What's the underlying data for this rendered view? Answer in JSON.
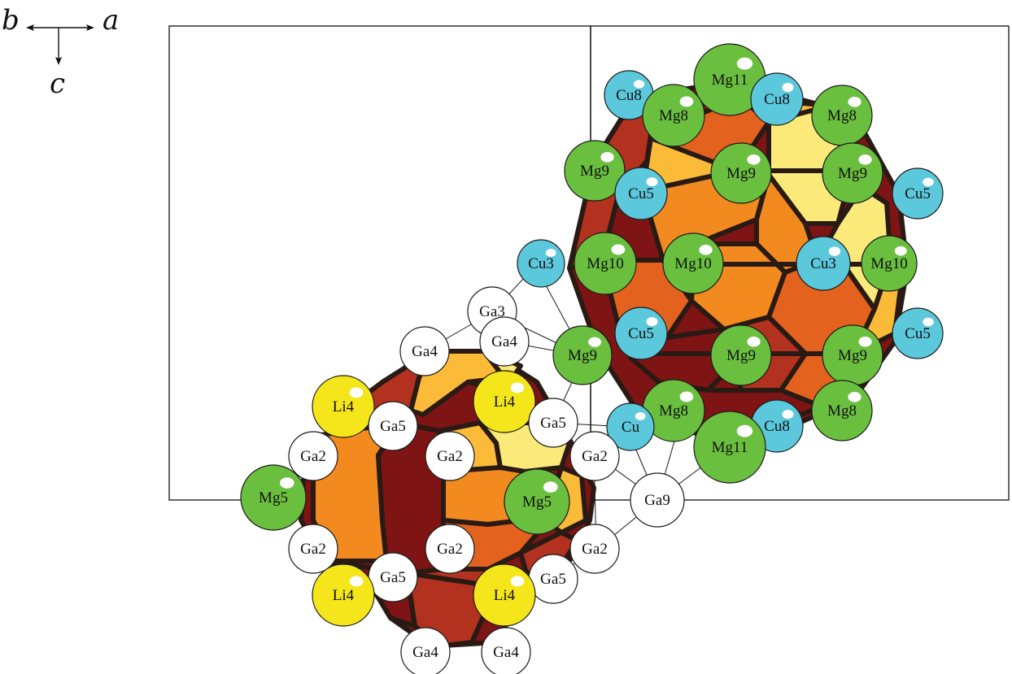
{
  "axes": {
    "a": "a",
    "b": "b",
    "c": "c"
  },
  "colors": {
    "mg": "#6abf3f",
    "cu": "#5cc8dc",
    "li": "#f4e61a",
    "ga": "#ffffff",
    "face_dark": "#7e1414",
    "face_red": "#b3311f",
    "face_orange_dark": "#e2621e",
    "face_orange": "#f28a1f",
    "face_amber": "#fbbb38",
    "face_yellow": "#fbe97a",
    "edge": "#2a1a14"
  },
  "atoms": [
    {
      "label": "Cu8",
      "element": "cu"
    },
    {
      "label": "Mg11",
      "element": "mg"
    },
    {
      "label": "Mg8",
      "element": "mg"
    },
    {
      "label": "Cu8",
      "element": "cu"
    },
    {
      "label": "Mg8",
      "element": "mg"
    },
    {
      "label": "Mg9",
      "element": "mg"
    },
    {
      "label": "Mg9",
      "element": "mg"
    },
    {
      "label": "Mg9",
      "element": "mg"
    },
    {
      "label": "Cu5",
      "element": "cu"
    },
    {
      "label": "Cu5",
      "element": "cu"
    },
    {
      "label": "Cu3",
      "element": "cu"
    },
    {
      "label": "Mg10",
      "element": "mg"
    },
    {
      "label": "Mg10",
      "element": "mg"
    },
    {
      "label": "Cu3",
      "element": "cu"
    },
    {
      "label": "Mg10",
      "element": "mg"
    },
    {
      "label": "Cu5",
      "element": "cu"
    },
    {
      "label": "Cu5",
      "element": "cu"
    },
    {
      "label": "Mg9",
      "element": "mg"
    },
    {
      "label": "Mg9",
      "element": "mg"
    },
    {
      "label": "Mg9",
      "element": "mg"
    },
    {
      "label": "Mg8",
      "element": "mg"
    },
    {
      "label": "Cu8",
      "element": "cu"
    },
    {
      "label": "Mg8",
      "element": "mg"
    },
    {
      "label": "Mg11",
      "element": "mg"
    },
    {
      "label": "Cu",
      "element": "cu"
    },
    {
      "label": "Ga3",
      "element": "ga"
    },
    {
      "label": "Ga4",
      "element": "ga"
    },
    {
      "label": "Ga4",
      "element": "ga"
    },
    {
      "label": "Li4",
      "element": "li"
    },
    {
      "label": "Li4",
      "element": "li"
    },
    {
      "label": "Ga5",
      "element": "ga"
    },
    {
      "label": "Ga5",
      "element": "ga"
    },
    {
      "label": "Ga2",
      "element": "ga"
    },
    {
      "label": "Ga2",
      "element": "ga"
    },
    {
      "label": "Ga2",
      "element": "ga"
    },
    {
      "label": "Mg5",
      "element": "mg"
    },
    {
      "label": "Mg5",
      "element": "mg"
    },
    {
      "label": "Ga9",
      "element": "ga"
    },
    {
      "label": "Ga2",
      "element": "ga"
    },
    {
      "label": "Ga2",
      "element": "ga"
    },
    {
      "label": "Ga2",
      "element": "ga"
    },
    {
      "label": "Ga5",
      "element": "ga"
    },
    {
      "label": "Ga5",
      "element": "ga"
    },
    {
      "label": "Li4",
      "element": "li"
    },
    {
      "label": "Li4",
      "element": "li"
    },
    {
      "label": "Ga4",
      "element": "ga"
    },
    {
      "label": "Ga4",
      "element": "ga"
    }
  ]
}
